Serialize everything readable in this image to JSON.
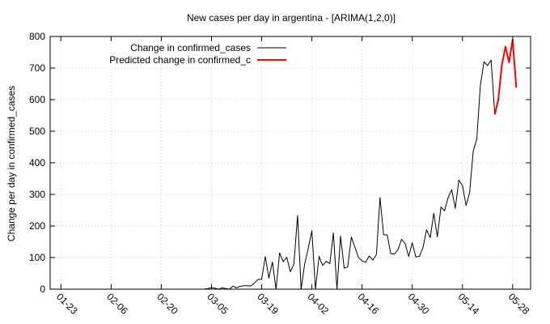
{
  "chart_data": {
    "type": "line",
    "title": "New cases per day in argentina -  [ARIMA(1,2,0)]",
    "xlabel": "",
    "ylabel": "Change per day in confirmed_cases",
    "ylim": [
      0,
      800
    ],
    "yticks": [
      0,
      100,
      200,
      300,
      400,
      500,
      600,
      700,
      800
    ],
    "xlim": [
      "2020-01-20",
      "2020-06-02"
    ],
    "xticks": [
      {
        "date": "2020-01-23",
        "label": "01-23"
      },
      {
        "date": "2020-02-06",
        "label": "02-06"
      },
      {
        "date": "2020-02-20",
        "label": "02-20"
      },
      {
        "date": "2020-03-05",
        "label": "03-05"
      },
      {
        "date": "2020-03-19",
        "label": "03-19"
      },
      {
        "date": "2020-04-02",
        "label": "04-02"
      },
      {
        "date": "2020-04-16",
        "label": "04-16"
      },
      {
        "date": "2020-04-30",
        "label": "04-30"
      },
      {
        "date": "2020-05-14",
        "label": "05-14"
      },
      {
        "date": "2020-05-28",
        "label": "05-28"
      }
    ],
    "grid": true,
    "legend_position": "top-left",
    "series": [
      {
        "name": "Change in confirmed_cases",
        "color": "#000000",
        "points": [
          [
            "2020-01-22",
            0
          ],
          [
            "2020-03-03",
            0
          ],
          [
            "2020-03-04",
            2
          ],
          [
            "2020-03-05",
            5
          ],
          [
            "2020-03-06",
            3
          ],
          [
            "2020-03-07",
            0
          ],
          [
            "2020-03-08",
            4
          ],
          [
            "2020-03-09",
            2
          ],
          [
            "2020-03-10",
            0
          ],
          [
            "2020-03-11",
            10
          ],
          [
            "2020-03-12",
            4
          ],
          [
            "2020-03-13",
            9
          ],
          [
            "2020-03-14",
            11
          ],
          [
            "2020-03-15",
            11
          ],
          [
            "2020-03-16",
            10
          ],
          [
            "2020-03-17",
            20
          ],
          [
            "2020-03-18",
            31
          ],
          [
            "2020-03-19",
            31
          ],
          [
            "2020-03-20",
            103
          ],
          [
            "2020-03-21",
            35
          ],
          [
            "2020-03-22",
            86
          ],
          [
            "2020-03-23",
            0
          ],
          [
            "2020-03-24",
            115
          ],
          [
            "2020-03-25",
            87
          ],
          [
            "2020-03-26",
            101
          ],
          [
            "2020-03-27",
            55
          ],
          [
            "2020-03-28",
            80
          ],
          [
            "2020-03-29",
            233
          ],
          [
            "2020-03-30",
            0
          ],
          [
            "2020-03-31",
            80
          ],
          [
            "2020-04-01",
            130
          ],
          [
            "2020-04-02",
            185
          ],
          [
            "2020-04-03",
            0
          ],
          [
            "2020-04-04",
            104
          ],
          [
            "2020-04-05",
            75
          ],
          [
            "2020-04-06",
            88
          ],
          [
            "2020-04-07",
            81
          ],
          [
            "2020-04-08",
            178
          ],
          [
            "2020-04-09",
            0
          ],
          [
            "2020-04-10",
            168
          ],
          [
            "2020-04-11",
            67
          ],
          [
            "2020-04-12",
            70
          ],
          [
            "2020-04-13",
            165
          ],
          [
            "2020-04-14",
            133
          ],
          [
            "2020-04-15",
            100
          ],
          [
            "2020-04-16",
            90
          ],
          [
            "2020-04-17",
            85
          ],
          [
            "2020-04-18",
            105
          ],
          [
            "2020-04-19",
            92
          ],
          [
            "2020-04-20",
            110
          ],
          [
            "2020-04-21",
            290
          ],
          [
            "2020-04-22",
            172
          ],
          [
            "2020-04-23",
            172
          ],
          [
            "2020-04-24",
            112
          ],
          [
            "2020-04-25",
            111
          ],
          [
            "2020-04-26",
            124
          ],
          [
            "2020-04-27",
            158
          ],
          [
            "2020-04-28",
            144
          ],
          [
            "2020-04-29",
            103
          ],
          [
            "2020-04-30",
            147
          ],
          [
            "2020-05-01",
            102
          ],
          [
            "2020-05-02",
            104
          ],
          [
            "2020-05-03",
            132
          ],
          [
            "2020-05-04",
            188
          ],
          [
            "2020-05-05",
            163
          ],
          [
            "2020-05-06",
            240
          ],
          [
            "2020-05-07",
            165
          ],
          [
            "2020-05-08",
            260
          ],
          [
            "2020-05-09",
            248
          ],
          [
            "2020-05-10",
            290
          ],
          [
            "2020-05-11",
            315
          ],
          [
            "2020-05-12",
            256
          ],
          [
            "2020-05-13",
            345
          ],
          [
            "2020-05-14",
            328
          ],
          [
            "2020-05-15",
            265
          ],
          [
            "2020-05-16",
            305
          ],
          [
            "2020-05-17",
            438
          ],
          [
            "2020-05-18",
            475
          ],
          [
            "2020-05-19",
            645
          ],
          [
            "2020-05-20",
            720
          ],
          [
            "2020-05-21",
            708
          ],
          [
            "2020-05-22",
            725
          ],
          [
            "2020-05-23",
            553
          ]
        ]
      },
      {
        "name": "Predicted change in confirmed_c",
        "color": "#ff0000",
        "points": [
          [
            "2020-05-23",
            553
          ],
          [
            "2020-05-24",
            600
          ],
          [
            "2020-05-25",
            710
          ],
          [
            "2020-05-26",
            768
          ],
          [
            "2020-05-27",
            718
          ],
          [
            "2020-05-28",
            790
          ],
          [
            "2020-05-29",
            638
          ]
        ]
      }
    ]
  }
}
